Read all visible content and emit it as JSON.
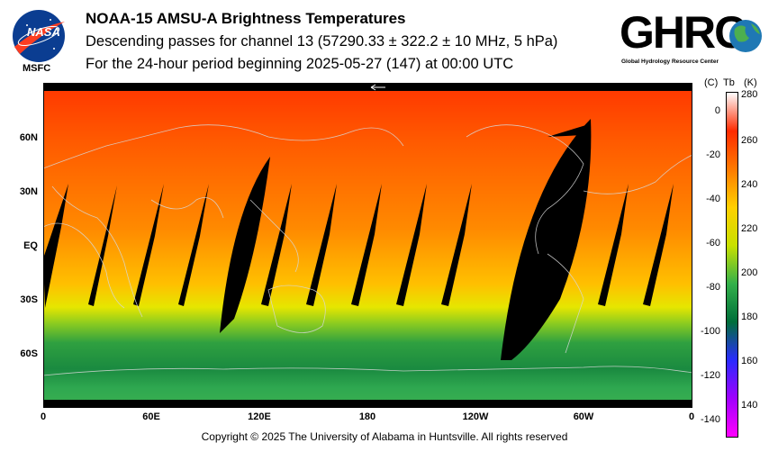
{
  "header": {
    "title": "NOAA-15 AMSU-A Brightness Temperatures",
    "subtitle1": "Descending passes for channel 13 (57290.33 ± 322.2 ± 10 MHz, 5 hPa)",
    "subtitle2": "For the 24-hour period beginning 2025-05-27 (147) at 00:00 UTC"
  },
  "logos": {
    "left_text": "NASA",
    "left_caption": "MSFC",
    "right_text": "GHRC",
    "right_caption": "Global Hydrology Resource Center"
  },
  "map": {
    "lat_labels": [
      "60N",
      "30N",
      "EQ",
      "30S",
      "60S"
    ],
    "lon_labels": [
      "0",
      "60E",
      "120E",
      "180",
      "120W",
      "60W",
      "0"
    ]
  },
  "colorbar": {
    "unit_c": "(C)",
    "unit_tb": "Tb",
    "unit_k": "(K)",
    "kelvin_labels": [
      "280",
      "260",
      "240",
      "220",
      "200",
      "180",
      "160",
      "140"
    ],
    "celsius_labels": [
      "0",
      "-20",
      "-40",
      "-60",
      "-80",
      "-100",
      "-120",
      "-140"
    ],
    "colors": [
      "#ffffff",
      "#ff2a00",
      "#ff7a00",
      "#ffd000",
      "#c8e000",
      "#33b04a",
      "#006e3a",
      "#2a2aff",
      "#a000ff",
      "#ff00ff"
    ]
  },
  "footer": {
    "copyright": "Copyright © 2025 The University of Alabama in Huntsville.  All rights reserved"
  }
}
